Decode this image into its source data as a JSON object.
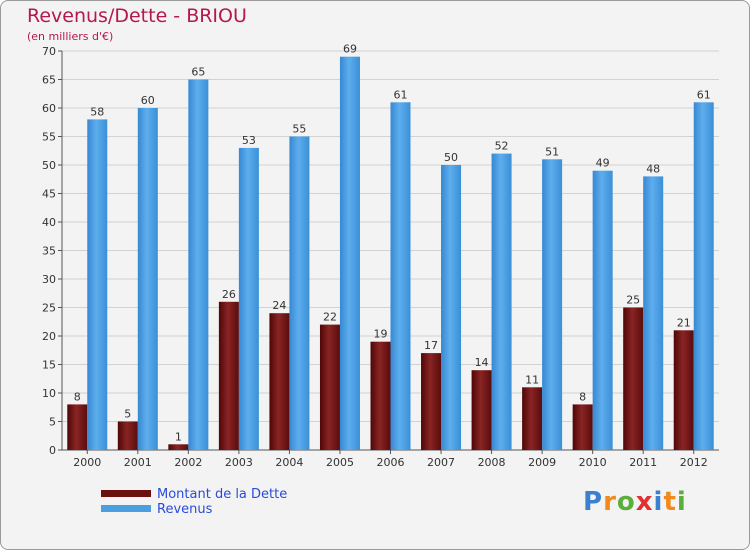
{
  "header": {
    "title": "Revenus/Dette - BRIOU",
    "subtitle": "(en milliers d'€)"
  },
  "chart_data": {
    "type": "bar",
    "title": "Revenus/Dette - BRIOU",
    "ylabel": "(en milliers d'€)",
    "xlabel": "",
    "ylim": [
      0,
      70
    ],
    "yticks": [
      0,
      5,
      10,
      15,
      20,
      25,
      30,
      35,
      40,
      45,
      50,
      55,
      60,
      65,
      70
    ],
    "grid": true,
    "categories": [
      "2000",
      "2001",
      "2002",
      "2003",
      "2004",
      "2005",
      "2006",
      "2007",
      "2008",
      "2009",
      "2010",
      "2011",
      "2012"
    ],
    "series": [
      {
        "name": "Montant de la Dette",
        "color": "#7a1a1a",
        "values": [
          8,
          5,
          1,
          26,
          24,
          22,
          19,
          17,
          14,
          11,
          8,
          25,
          21
        ]
      },
      {
        "name": "Revenus",
        "color": "#4a9fe0",
        "values": [
          58,
          60,
          65,
          53,
          55,
          69,
          61,
          50,
          52,
          51,
          49,
          48,
          61
        ]
      }
    ],
    "legend_position": "bottom-left"
  },
  "legend": {
    "items": [
      {
        "label": "Montant de la Dette",
        "color": "#6b0f0f"
      },
      {
        "label": "Revenus",
        "color": "#4a9fe0"
      }
    ]
  },
  "brand": {
    "logo_text": "Proxiti",
    "letter_colors": [
      "#3a7fd0",
      "#f08a1a",
      "#5aae3a",
      "#e23030",
      "#3a7fd0",
      "#f08a1a",
      "#5aae3a"
    ]
  }
}
